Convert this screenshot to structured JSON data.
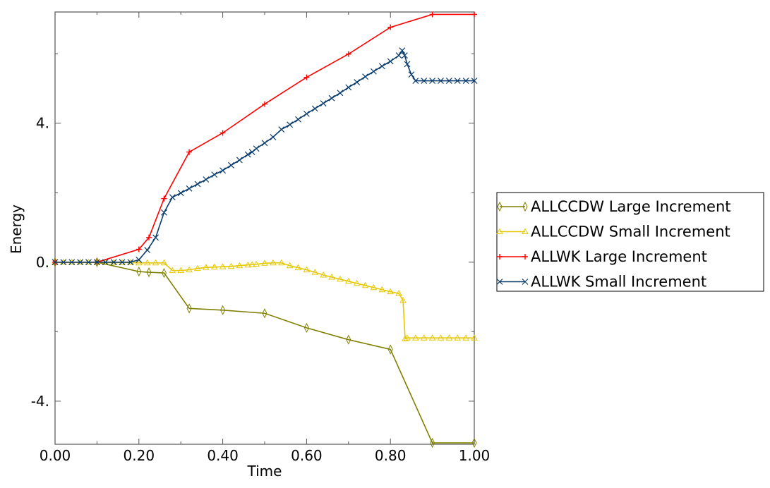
{
  "chart_data": {
    "type": "line",
    "xlabel": "Time",
    "ylabel": "Energy",
    "xlim": [
      0,
      1
    ],
    "ylim": [
      -5.24,
      7.2
    ],
    "xticks": [
      0,
      0.2,
      0.4,
      0.6,
      0.8,
      1.0
    ],
    "xtick_labels": [
      "0.00",
      "0.20",
      "0.40",
      "0.60",
      "0.80",
      "1.00"
    ],
    "yticks": [
      -4,
      0,
      4
    ],
    "ytick_labels": [
      "-4.",
      "0.",
      "4."
    ],
    "grid": false,
    "legend_position": "right",
    "series": [
      {
        "name": "ALLCCDW Large Increment",
        "color": "#808000",
        "marker": "diamond",
        "x": [
          0,
          0.1,
          0.2,
          0.224,
          0.26,
          0.32,
          0.4,
          0.5,
          0.6,
          0.7,
          0.8,
          0.9,
          1.0
        ],
        "y": [
          0,
          0,
          -0.27,
          -0.29,
          -0.31,
          -1.33,
          -1.38,
          -1.47,
          -1.89,
          -2.23,
          -2.51,
          -5.2,
          -5.2
        ]
      },
      {
        "name": "ALLCCDW Small Increment",
        "color": "#e6c800",
        "marker": "triangle",
        "x": [
          0,
          0.02,
          0.04,
          0.06,
          0.08,
          0.1,
          0.12,
          0.14,
          0.16,
          0.18,
          0.2,
          0.22,
          0.24,
          0.26,
          0.28,
          0.3,
          0.32,
          0.34,
          0.36,
          0.38,
          0.4,
          0.42,
          0.44,
          0.46,
          0.47,
          0.48,
          0.5,
          0.52,
          0.54,
          0.56,
          0.58,
          0.6,
          0.62,
          0.64,
          0.66,
          0.68,
          0.7,
          0.72,
          0.74,
          0.76,
          0.78,
          0.8,
          0.82,
          0.83,
          0.835,
          0.84,
          0.86,
          0.88,
          0.9,
          0.92,
          0.94,
          0.96,
          0.98,
          1.0
        ],
        "y": [
          0,
          0,
          0,
          0,
          0,
          0,
          -0.01,
          -0.01,
          -0.01,
          -0.01,
          -0.02,
          -0.02,
          -0.02,
          -0.02,
          -0.24,
          -0.24,
          -0.22,
          -0.18,
          -0.15,
          -0.14,
          -0.13,
          -0.12,
          -0.1,
          -0.08,
          -0.07,
          -0.06,
          -0.03,
          -0.02,
          -0.02,
          -0.1,
          -0.16,
          -0.22,
          -0.29,
          -0.37,
          -0.43,
          -0.49,
          -0.55,
          -0.61,
          -0.67,
          -0.73,
          -0.79,
          -0.85,
          -0.9,
          -1.1,
          -2.2,
          -2.18,
          -2.18,
          -2.18,
          -2.18,
          -2.18,
          -2.18,
          -2.18,
          -2.18,
          -2.18
        ]
      },
      {
        "name": "ALLWK Large Increment",
        "color": "#ff0000",
        "marker": "plus",
        "x": [
          0,
          0.1,
          0.2,
          0.224,
          0.26,
          0.32,
          0.4,
          0.5,
          0.6,
          0.7,
          0.8,
          0.9,
          1.0
        ],
        "y": [
          0,
          0,
          0.37,
          0.71,
          1.83,
          3.17,
          3.72,
          4.55,
          5.32,
          5.99,
          6.76,
          7.13,
          7.13
        ]
      },
      {
        "name": "ALLWK Small Increment",
        "color": "#0a3d6e",
        "marker": "x",
        "x": [
          0,
          0.02,
          0.04,
          0.06,
          0.08,
          0.1,
          0.12,
          0.14,
          0.16,
          0.18,
          0.2,
          0.22,
          0.24,
          0.26,
          0.28,
          0.3,
          0.32,
          0.34,
          0.36,
          0.38,
          0.4,
          0.42,
          0.44,
          0.46,
          0.47,
          0.48,
          0.5,
          0.52,
          0.54,
          0.56,
          0.58,
          0.6,
          0.62,
          0.64,
          0.66,
          0.68,
          0.7,
          0.72,
          0.74,
          0.76,
          0.78,
          0.8,
          0.82,
          0.828,
          0.834,
          0.84,
          0.85,
          0.86,
          0.88,
          0.9,
          0.92,
          0.94,
          0.96,
          0.98,
          1.0
        ],
        "y": [
          0,
          0,
          0,
          0,
          0,
          0,
          0,
          0,
          0,
          0,
          0.07,
          0.35,
          0.71,
          1.43,
          1.87,
          1.99,
          2.12,
          2.25,
          2.38,
          2.52,
          2.64,
          2.79,
          2.94,
          3.1,
          3.17,
          3.27,
          3.43,
          3.6,
          3.82,
          3.96,
          4.11,
          4.27,
          4.42,
          4.57,
          4.72,
          4.87,
          5.03,
          5.18,
          5.34,
          5.49,
          5.64,
          5.78,
          5.95,
          6.09,
          5.95,
          5.7,
          5.4,
          5.22,
          5.22,
          5.22,
          5.22,
          5.22,
          5.22,
          5.22,
          5.22
        ]
      }
    ]
  }
}
